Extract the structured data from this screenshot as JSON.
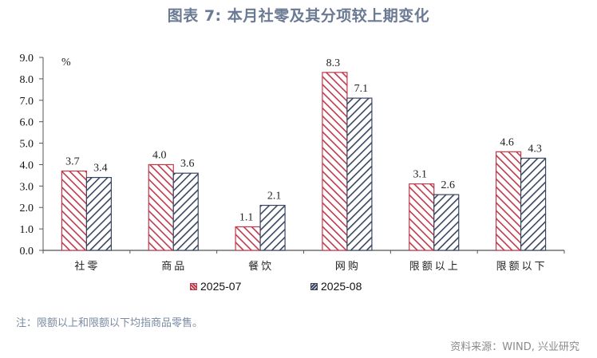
{
  "title": "图表 7:  本月社零及其分项较上期变化",
  "chart_data": {
    "type": "bar",
    "title": "本月社零及其分项较上期变化",
    "categories": [
      "社零",
      "商品",
      "餐饮",
      "网购",
      "限额以上",
      "限额以下"
    ],
    "series": [
      {
        "name": "2025-07",
        "values": [
          3.7,
          4.0,
          1.1,
          8.3,
          3.1,
          4.6
        ],
        "color": "#c0394b",
        "hatch": "backslash"
      },
      {
        "name": "2025-08",
        "values": [
          3.4,
          3.6,
          2.1,
          7.1,
          2.6,
          4.3
        ],
        "color": "#3a4660",
        "hatch": "slash"
      }
    ],
    "xlabel": "",
    "ylabel": "%",
    "ylim": [
      0,
      9
    ],
    "yticks": [
      "0.0",
      "1.0",
      "2.0",
      "3.0",
      "4.0",
      "5.0",
      "6.0",
      "7.0",
      "8.0",
      "9.0"
    ],
    "grid": false,
    "legend_position": "bottom",
    "data_labels": true
  },
  "legend": {
    "items": [
      {
        "label": "2025-07"
      },
      {
        "label": "2025-08"
      }
    ]
  },
  "unit_label": "%",
  "note": "注：限额以上和限额以下均指商品零售。",
  "source": "资料来源：WIND, 兴业研究"
}
